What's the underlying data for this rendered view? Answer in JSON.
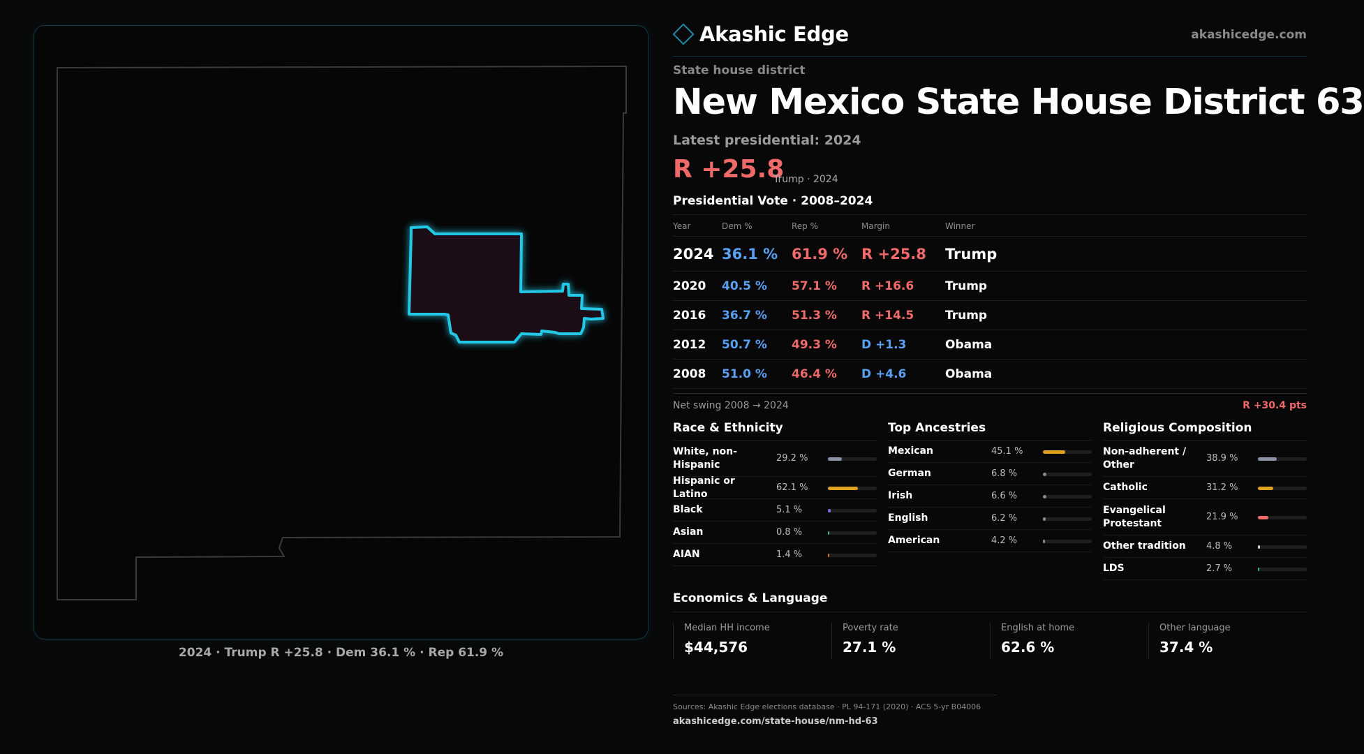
{
  "brand": {
    "name": "Akashic Edge",
    "url": "akashicedge.com",
    "accent": "#1e8aa6"
  },
  "kicker": "State house district",
  "title": "New Mexico State House District 63",
  "latest_label": "Latest presidential: 2024",
  "headline_margin": "R +25.8",
  "headline_note": "Trump · 2024",
  "vote_heading": "Presidential Vote · 2008–2024",
  "vote_table": {
    "headers": [
      "Year",
      "Dem %",
      "Rep %",
      "Margin",
      "Winner"
    ],
    "rows": [
      {
        "year": "2024",
        "dem": "36.1 %",
        "rep": "61.9 %",
        "margin": "R +25.8",
        "winner": "Trump",
        "party": "R"
      },
      {
        "year": "2020",
        "dem": "40.5 %",
        "rep": "57.1 %",
        "margin": "R +16.6",
        "winner": "Trump",
        "party": "R"
      },
      {
        "year": "2016",
        "dem": "36.7 %",
        "rep": "51.3 %",
        "margin": "R +14.5",
        "winner": "Trump",
        "party": "R"
      },
      {
        "year": "2012",
        "dem": "50.7 %",
        "rep": "49.3 %",
        "margin": "D +1.3",
        "winner": "Obama",
        "party": "D"
      },
      {
        "year": "2008",
        "dem": "51.0 %",
        "rep": "46.4 %",
        "margin": "D +4.6",
        "winner": "Obama",
        "party": "D"
      }
    ]
  },
  "swing": {
    "label": "Net swing 2008 → 2024",
    "value": "R +30.4 pts"
  },
  "race": {
    "title": "Race & Ethnicity",
    "items": [
      {
        "label": "White, non-Hispanic",
        "value": "29.2 %",
        "pct": 29.2,
        "color": "#8a93a6"
      },
      {
        "label": "Hispanic or Latino",
        "value": "62.1 %",
        "pct": 62.1,
        "color": "#e0a020"
      },
      {
        "label": "Black",
        "value": "5.1 %",
        "pct": 5.1,
        "color": "#7a6fd8"
      },
      {
        "label": "Asian",
        "value": "0.8 %",
        "pct": 0.8,
        "color": "#2fb39a"
      },
      {
        "label": "AIAN",
        "value": "1.4 %",
        "pct": 1.4,
        "color": "#e06a2a"
      }
    ]
  },
  "ancestry": {
    "title": "Top Ancestries",
    "items": [
      {
        "label": "Mexican",
        "value": "45.1 %",
        "pct": 45.1,
        "color": "#e0a020"
      },
      {
        "label": "German",
        "value": "6.8 %",
        "pct": 6.8,
        "color": "#8a8a8a"
      },
      {
        "label": "Irish",
        "value": "6.6 %",
        "pct": 6.6,
        "color": "#8a8a8a"
      },
      {
        "label": "English",
        "value": "6.2 %",
        "pct": 6.2,
        "color": "#8a8a8a"
      },
      {
        "label": "American",
        "value": "4.2 %",
        "pct": 4.2,
        "color": "#8a8a8a"
      }
    ]
  },
  "religion": {
    "title": "Religious Composition",
    "items": [
      {
        "label": "Non-adherent / Other",
        "value": "38.9 %",
        "pct": 38.9,
        "color": "#8a93a6"
      },
      {
        "label": "Catholic",
        "value": "31.2 %",
        "pct": 31.2,
        "color": "#e0a020"
      },
      {
        "label": "Evangelical Protestant",
        "value": "21.9 %",
        "pct": 21.9,
        "color": "#f06a6a"
      },
      {
        "label": "Other tradition",
        "value": "4.8 %",
        "pct": 4.8,
        "color": "#cccccc"
      },
      {
        "label": "LDS",
        "value": "2.7 %",
        "pct": 2.7,
        "color": "#2fb39a"
      }
    ]
  },
  "economics": {
    "title": "Economics & Language",
    "cells": [
      {
        "label": "Median HH income",
        "value": "$44,576"
      },
      {
        "label": "Poverty rate",
        "value": "27.1 %"
      },
      {
        "label": "English at home",
        "value": "62.6 %"
      },
      {
        "label": "Other language",
        "value": "37.4 %"
      }
    ]
  },
  "map_caption": "2024 · Trump R +25.8 · Dem 36.1 % · Rep 61.9 %",
  "sources": "Sources: Akashic Edge elections database · PL 94-171 (2020) · ACS 5-yr B04006",
  "footer_url": "akashicedge.com/state-house/nm-hd-63",
  "colors": {
    "rep": "#f06a6a",
    "dem": "#5aa0f2",
    "district_outline": "#22c8e6",
    "district_fill": "#1e0f12"
  }
}
